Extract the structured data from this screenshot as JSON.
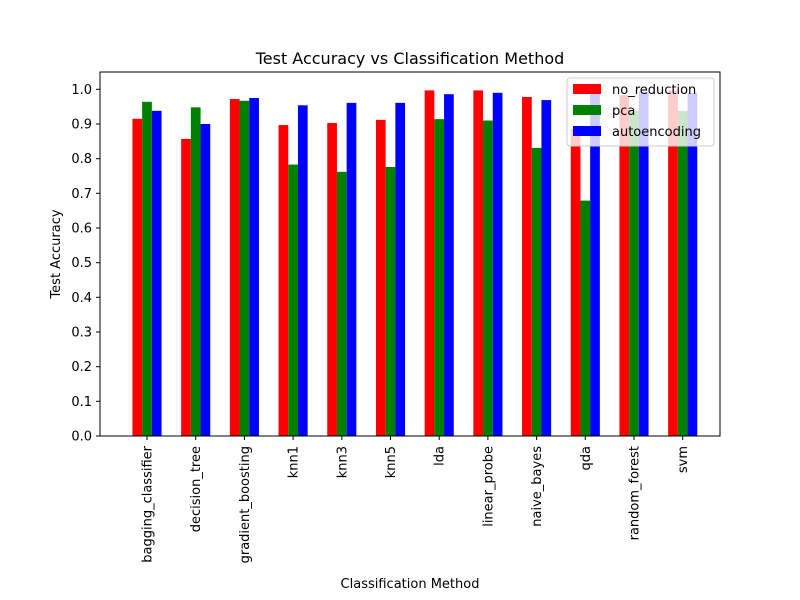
{
  "chart_data": {
    "type": "bar",
    "title": "Test Accuracy vs Classification Method",
    "xlabel": "Classification Method",
    "ylabel": "Test Accuracy",
    "ylim": [
      0,
      1.05
    ],
    "yticks": [
      "0.0",
      "0.1",
      "0.2",
      "0.3",
      "0.4",
      "0.5",
      "0.6",
      "0.7",
      "0.8",
      "0.9",
      "1.0"
    ],
    "legend_position": "top-right",
    "categories": [
      "bagging_classifier",
      "decision_tree",
      "gradient_boosting",
      "knn1",
      "knn3",
      "knn5",
      "lda",
      "linear_probe",
      "naive_bayes",
      "qda",
      "random_forest",
      "svm"
    ],
    "series": [
      {
        "name": "no_reduction",
        "color": "#ff0000",
        "values": [
          0.915,
          0.857,
          0.972,
          0.897,
          0.903,
          0.912,
          0.997,
          0.997,
          0.978,
          0.886,
          0.983,
          0.997
        ]
      },
      {
        "name": "pca",
        "color": "#008000",
        "values": [
          0.964,
          0.948,
          0.967,
          0.783,
          0.762,
          0.776,
          0.914,
          0.91,
          0.831,
          0.679,
          0.938,
          0.938
        ]
      },
      {
        "name": "autoencoding",
        "color": "#0000ff",
        "values": [
          0.938,
          0.9,
          0.975,
          0.954,
          0.961,
          0.961,
          0.986,
          0.99,
          0.969,
          0.99,
          0.993,
          0.99
        ]
      }
    ],
    "grid": false
  }
}
